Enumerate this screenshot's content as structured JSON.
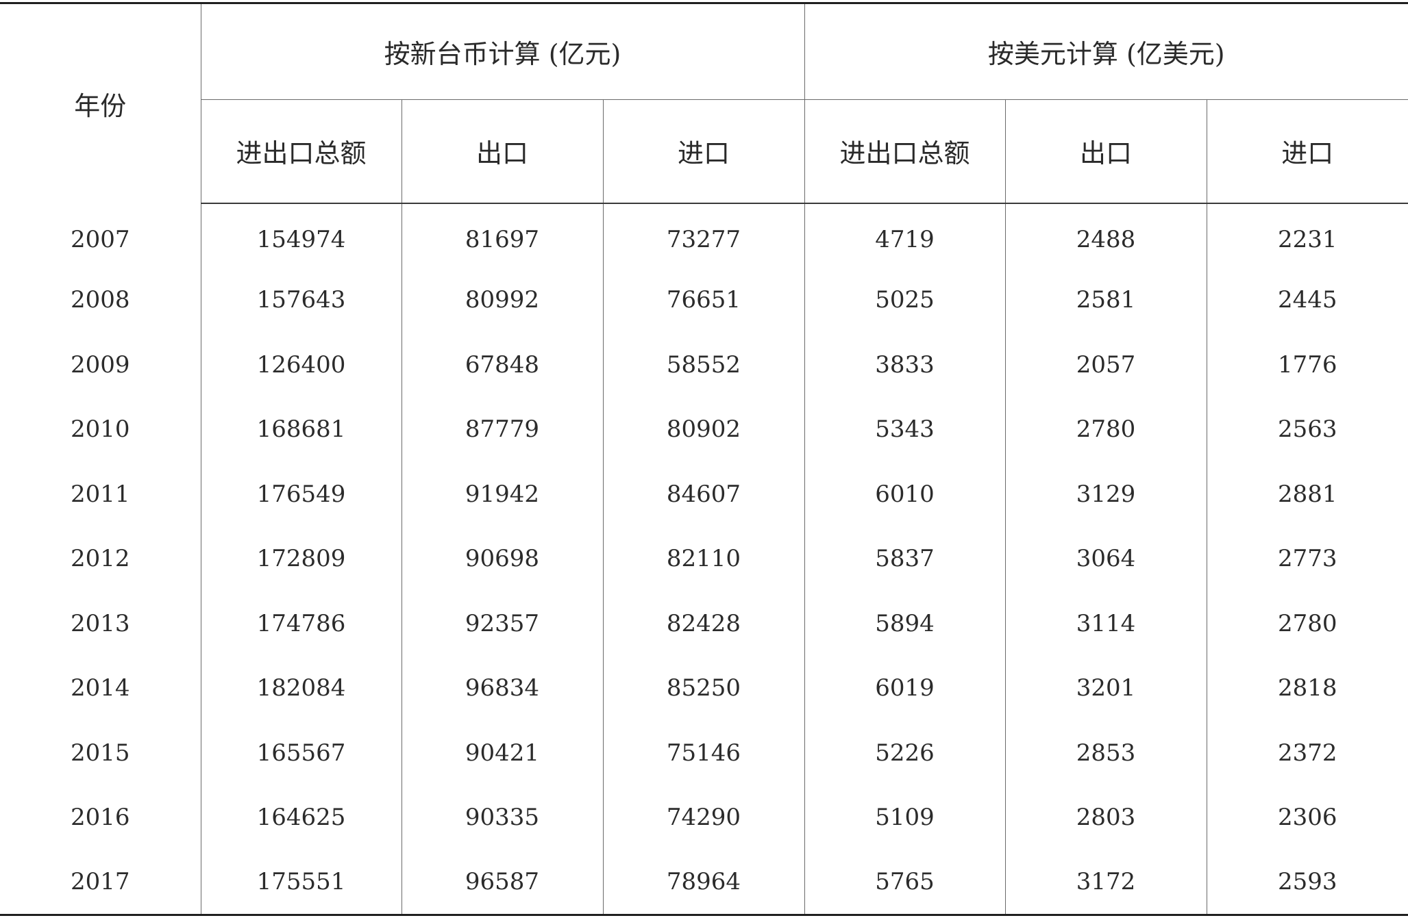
{
  "table": {
    "year_header": "年份",
    "groups": [
      {
        "label": "按新台币计算 (亿元)"
      },
      {
        "label": "按美元计算 (亿美元)"
      }
    ],
    "sub_headers": [
      "进出口总额",
      "出口",
      "进口",
      "进出口总额",
      "出口",
      "进口"
    ],
    "rows": [
      [
        "2007",
        "154974",
        "81697",
        "73277",
        "4719",
        "2488",
        "2231"
      ],
      [
        "2008",
        "157643",
        "80992",
        "76651",
        "5025",
        "2581",
        "2445"
      ],
      [
        "2009",
        "126400",
        "67848",
        "58552",
        "3833",
        "2057",
        "1776"
      ],
      [
        "2010",
        "168681",
        "87779",
        "80902",
        "5343",
        "2780",
        "2563"
      ],
      [
        "2011",
        "176549",
        "91942",
        "84607",
        "6010",
        "3129",
        "2881"
      ],
      [
        "2012",
        "172809",
        "90698",
        "82110",
        "5837",
        "3064",
        "2773"
      ],
      [
        "2013",
        "174786",
        "92357",
        "82428",
        "5894",
        "3114",
        "2780"
      ],
      [
        "2014",
        "182084",
        "96834",
        "85250",
        "6019",
        "3201",
        "2818"
      ],
      [
        "2015",
        "165567",
        "90421",
        "75146",
        "5226",
        "2853",
        "2372"
      ],
      [
        "2016",
        "164625",
        "90335",
        "74290",
        "5109",
        "2803",
        "2306"
      ],
      [
        "2017",
        "175551",
        "96587",
        "78964",
        "5765",
        "3172",
        "2593"
      ]
    ]
  }
}
